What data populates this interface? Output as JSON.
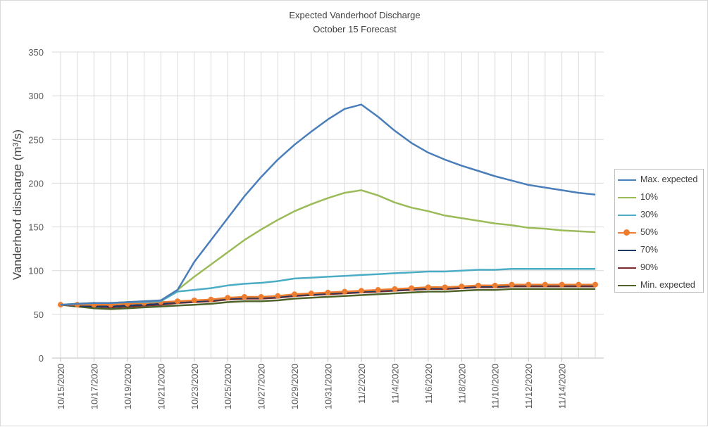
{
  "chart_data": {
    "type": "line",
    "title": "Expected Vanderhoof Discharge",
    "subtitle": "October 15 Forecast",
    "ylabel": "Vanderhoof discharge (m³/s)",
    "xlabel": "",
    "ylim": [
      0,
      350
    ],
    "yticks": [
      0,
      50,
      100,
      150,
      200,
      250,
      300,
      350
    ],
    "xticks": [
      "10/15/2020",
      "10/17/2020",
      "10/19/2020",
      "10/21/2020",
      "10/23/2020",
      "10/25/2020",
      "10/27/2020",
      "10/29/2020",
      "10/31/2020",
      "11/2/2020",
      "11/4/2020",
      "11/6/2020",
      "11/8/2020",
      "11/10/2020",
      "11/12/2020",
      "11/14/2020"
    ],
    "grid": true,
    "legend_position": "right",
    "x_start": "2020-10-15",
    "x_end": "2020-11-16",
    "series": [
      {
        "name": "Max. expected",
        "color": "#4a7ebb",
        "marker": false,
        "values": [
          61,
          62,
          63,
          63,
          64,
          65,
          66,
          78,
          110,
          135,
          160,
          185,
          207,
          227,
          244,
          259,
          273,
          285,
          290,
          276,
          260,
          246,
          235,
          227,
          220,
          214,
          208,
          203,
          198,
          195,
          192,
          189,
          187
        ]
      },
      {
        "name": "10%",
        "color": "#9bbb59",
        "marker": false,
        "values": [
          61,
          62,
          63,
          63,
          64,
          65,
          66,
          78,
          93,
          107,
          121,
          135,
          147,
          158,
          168,
          176,
          183,
          189,
          192,
          186,
          178,
          172,
          168,
          163,
          160,
          157,
          154,
          152,
          149,
          148,
          146,
          145,
          144
        ]
      },
      {
        "name": "30%",
        "color": "#4bacc6",
        "marker": false,
        "values": [
          61,
          62,
          63,
          63,
          64,
          64,
          65,
          76,
          78,
          80,
          83,
          85,
          86,
          88,
          91,
          92,
          93,
          94,
          95,
          96,
          97,
          98,
          99,
          99,
          100,
          101,
          101,
          102,
          102,
          102,
          102,
          102,
          102
        ]
      },
      {
        "name": "50%",
        "color": "#ed7d31",
        "marker": true,
        "values": [
          61,
          61,
          61,
          61,
          62,
          63,
          64,
          65,
          66,
          67,
          69,
          70,
          70,
          71,
          73,
          74,
          75,
          76,
          77,
          78,
          79,
          80,
          81,
          81,
          82,
          83,
          83,
          84,
          84,
          84,
          84,
          84,
          84
        ]
      },
      {
        "name": "70%",
        "color": "#1f3864",
        "marker": false,
        "values": [
          61,
          60,
          59,
          59,
          60,
          61,
          62,
          64,
          65,
          66,
          68,
          69,
          69,
          70,
          72,
          73,
          74,
          75,
          76,
          77,
          78,
          79,
          80,
          80,
          81,
          82,
          82,
          83,
          83,
          83,
          83,
          83,
          83
        ]
      },
      {
        "name": "90%",
        "color": "#7b2c2c",
        "marker": false,
        "values": [
          61,
          60,
          59,
          58,
          59,
          60,
          61,
          63,
          64,
          65,
          67,
          68,
          68,
          69,
          71,
          72,
          73,
          74,
          75,
          76,
          77,
          78,
          79,
          79,
          80,
          81,
          81,
          82,
          82,
          82,
          82,
          82,
          82
        ]
      },
      {
        "name": "Min. expected",
        "color": "#4f6228",
        "marker": false,
        "values": [
          61,
          59,
          57,
          56,
          57,
          58,
          59,
          60,
          61,
          62,
          64,
          65,
          65,
          66,
          68,
          69,
          70,
          71,
          72,
          73,
          74,
          75,
          76,
          76,
          77,
          78,
          78,
          79,
          79,
          79,
          79,
          79,
          79
        ]
      }
    ]
  }
}
